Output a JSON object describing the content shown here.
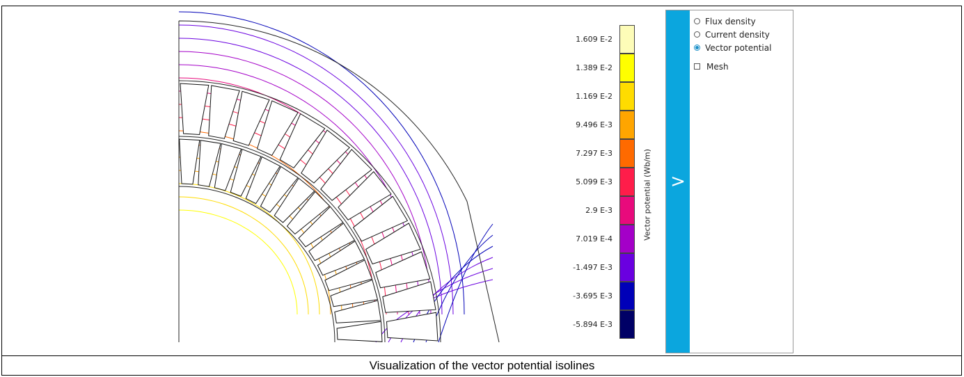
{
  "legend": {
    "axis_label": "Vector potential (Wb/m)",
    "entries": [
      {
        "label": "1.609 E-2",
        "color": "#fdfcb8"
      },
      {
        "label": "1.389 E-2",
        "color": "#ffff00"
      },
      {
        "label": "1.169 E-2",
        "color": "#ffdc00"
      },
      {
        "label": "9.496 E-3",
        "color": "#ffa500"
      },
      {
        "label": "7.297 E-3",
        "color": "#ff6a00"
      },
      {
        "label": "5.099 E-3",
        "color": "#ff1d4a"
      },
      {
        "label": "2.9 E-3",
        "color": "#e80a7c"
      },
      {
        "label": "7.019 E-4",
        "color": "#a400c8"
      },
      {
        "label": "-1.497 E-3",
        "color": "#6a00e0"
      },
      {
        "label": "-3.695 E-3",
        "color": "#0000b8"
      },
      {
        "label": "-5.894 E-3",
        "color": "#000066"
      }
    ]
  },
  "panel": {
    "toggle_icon": ">",
    "options": [
      {
        "label": "Flux density",
        "selected": false
      },
      {
        "label": "Current density",
        "selected": false
      },
      {
        "label": "Vector potential",
        "selected": true
      }
    ],
    "mesh_label": "Mesh",
    "mesh_checked": false,
    "accent": "#0ba6de"
  },
  "caption": "Visualization of the vector potential isolines"
}
